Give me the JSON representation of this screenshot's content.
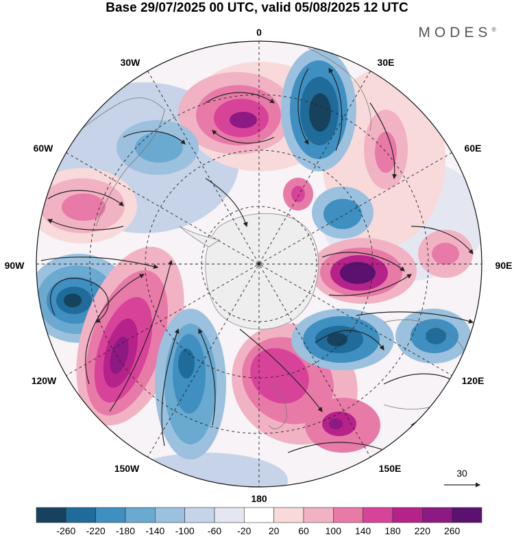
{
  "title": "Base 29/07/2025 00 UTC, valid 05/08/2025 12 UTC",
  "logo": "MODES",
  "logo_mark": "®",
  "meridian_labels": {
    "lon_0": "0",
    "lon_30e": "30E",
    "lon_60e": "60E",
    "lon_90e": "90E",
    "lon_120e": "120E",
    "lon_150e": "150E",
    "lon_180": "180",
    "lon_150w": "150W",
    "lon_120w": "120W",
    "lon_90w": "90W",
    "lon_60w": "60W",
    "lon_30w": "30W"
  },
  "reference_vector": {
    "label": "30"
  },
  "colorbar": {
    "colors": [
      "#17425e",
      "#1f6b9a",
      "#3f8fc0",
      "#6aa9d0",
      "#9bc1de",
      "#c6d3e8",
      "#e4e6f2",
      "#ffffff",
      "#f8dada",
      "#f1b2c4",
      "#e87aa8",
      "#d8439a",
      "#b5228a",
      "#8c1a82",
      "#5b1170"
    ],
    "labels": [
      "-260",
      "-220",
      "-180",
      "-140",
      "-100",
      "-60",
      "-20",
      "20",
      "60",
      "100",
      "140",
      "180",
      "220",
      "260"
    ]
  },
  "anomaly_centers": [
    {
      "name": "south-pacific-high-1",
      "value": 260,
      "color": "#8c1a82"
    },
    {
      "name": "south-pacific-low-1",
      "value": -220,
      "color": "#1f6b9a"
    },
    {
      "name": "indian-ocean-high-1",
      "value": 260,
      "color": "#5b1170"
    },
    {
      "name": "indian-ocean-low-1",
      "value": -260,
      "color": "#17425e"
    },
    {
      "name": "atlantic-low-1",
      "value": -260,
      "color": "#17425e"
    },
    {
      "name": "atlantic-high-1",
      "value": 220,
      "color": "#8c1a82"
    },
    {
      "name": "southeast-pacific-low-1",
      "value": -260,
      "color": "#17425e"
    },
    {
      "name": "tasman-high-1",
      "value": 220,
      "color": "#b5228a"
    }
  ]
}
